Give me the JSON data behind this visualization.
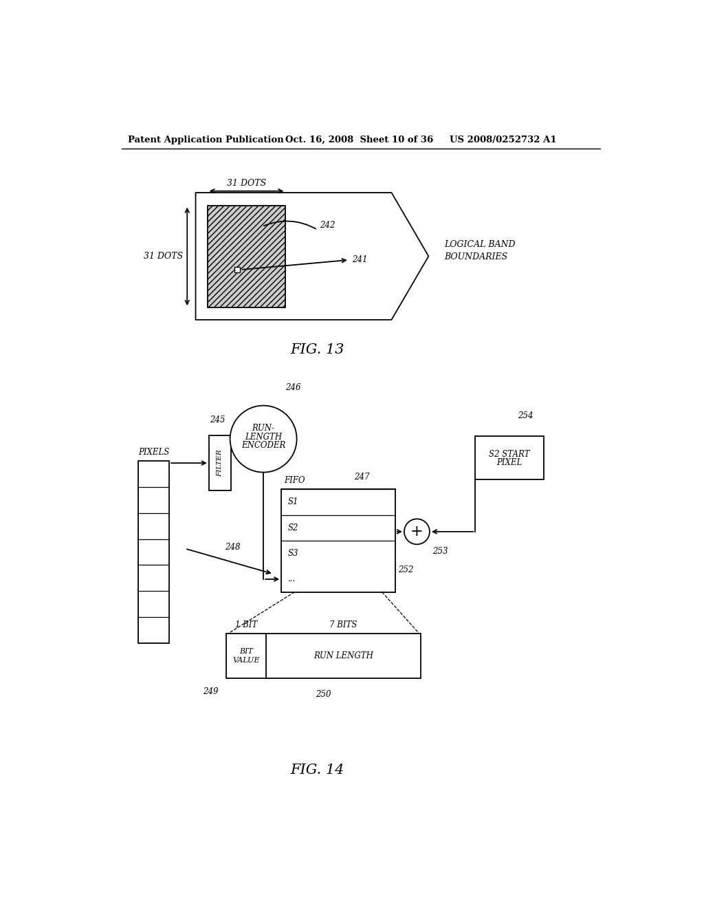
{
  "header_left": "Patent Application Publication",
  "header_mid": "Oct. 16, 2008  Sheet 10 of 36",
  "header_right": "US 2008/0252732 A1",
  "fig13_label": "FIG. 13",
  "fig14_label": "FIG. 14",
  "bg_color": "#ffffff",
  "line_color": "#000000"
}
